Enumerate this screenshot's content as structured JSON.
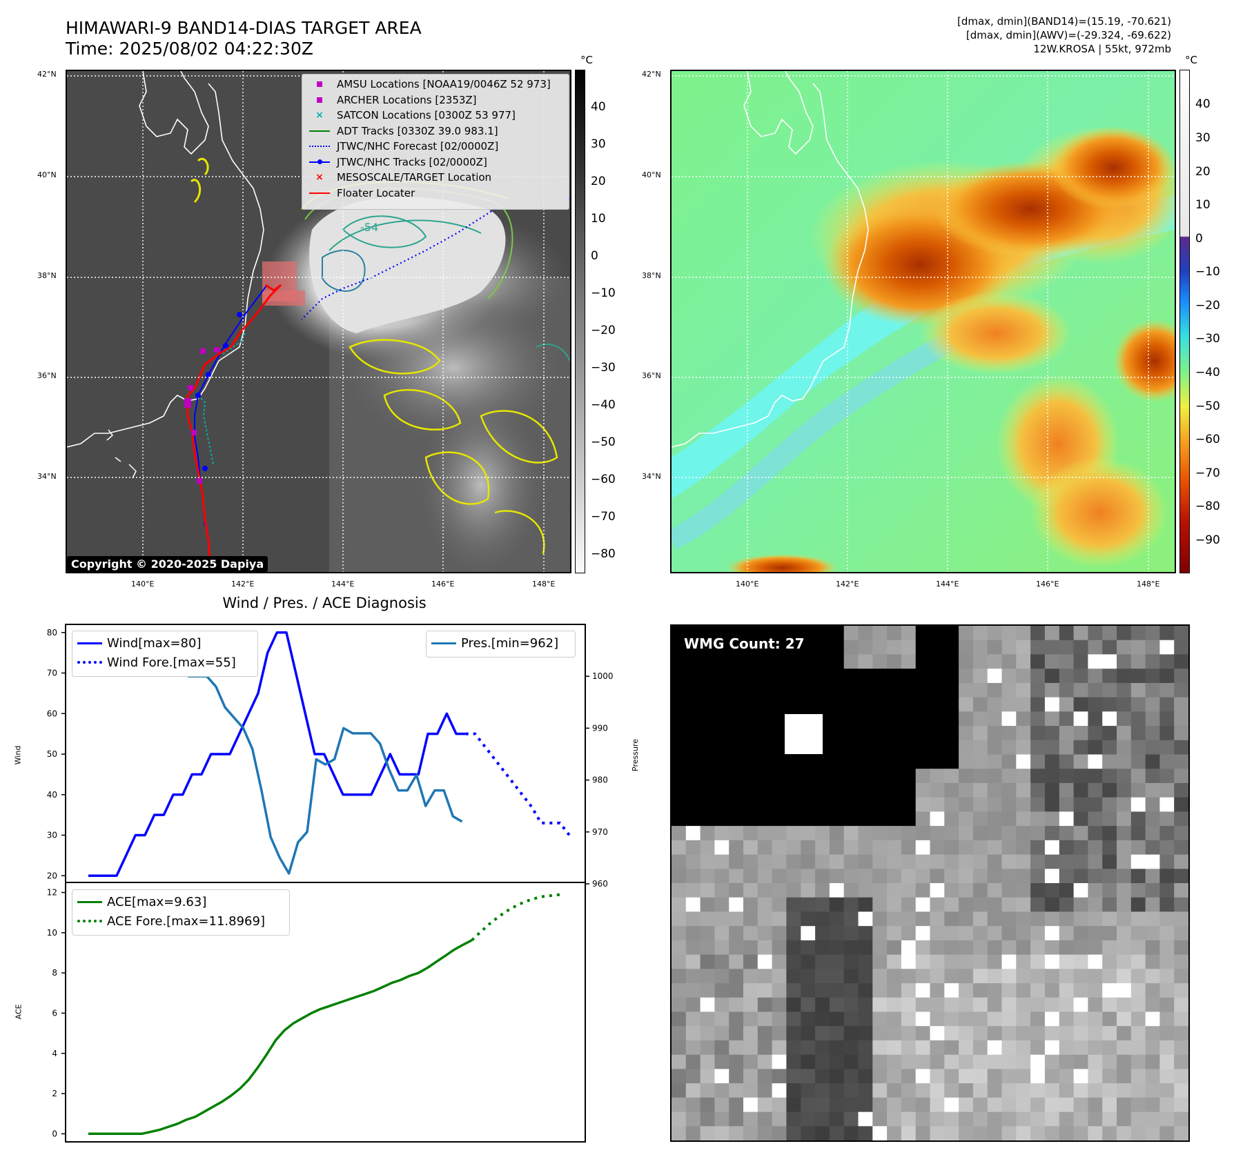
{
  "header": {
    "title_line1": "HIMAWARI-9 BAND14-DIAS TARGET AREA",
    "title_line2": "Time: 2025/08/02 04:22:30Z",
    "info_line1": "[dmax, dmin](BAND14)=(15.19, -70.621)",
    "info_line2": "[dmax, dmin](AWV)=(-29.324, -69.622)",
    "info_line3": "12W.KROSA | 55kt, 972mb"
  },
  "map": {
    "lat_labels": [
      "42°N",
      "40°N",
      "38°N",
      "36°N",
      "34°N"
    ],
    "lon_labels": [
      "140°E",
      "142°E",
      "144°E",
      "146°E",
      "148°E"
    ],
    "copyright": "Copyright © 2020-2025 Dapiya",
    "contour_label": "-54",
    "legend": [
      {
        "label": "AMSU Locations [NOAA19/0046Z 52 973]",
        "color": "#c000c0",
        "symbol": "square-marker"
      },
      {
        "label": "ARCHER Locations [2353Z]",
        "color": "#c000c0",
        "symbol": "square-marker"
      },
      {
        "label": "SATCON Locations [0300Z 53 977]",
        "color": "#00b0b0",
        "symbol": "x-marker"
      },
      {
        "label": "ADT Tracks [0330Z 39.0 983.1]",
        "color": "#008000",
        "symbol": "line"
      },
      {
        "label": "JTWC/NHC Forecast [02/0000Z]",
        "color": "#0000ff",
        "symbol": "dotted-line"
      },
      {
        "label": "JTWC/NHC Tracks [02/0000Z]",
        "color": "#0000ff",
        "symbol": "line-dot"
      },
      {
        "label": "MESOSCALE/TARGET Location",
        "color": "#ff0000",
        "symbol": "x-marker"
      },
      {
        "label": "Floater Locater",
        "color": "#ff0000",
        "symbol": "line"
      }
    ]
  },
  "colorbars": {
    "unit": "°C",
    "gray_ticks": [
      "40",
      "30",
      "20",
      "10",
      "0",
      "−10",
      "−20",
      "−30",
      "−40",
      "−50",
      "−60",
      "−70",
      "−80"
    ],
    "awv_ticks": [
      "40",
      "30",
      "20",
      "10",
      "0",
      "−10",
      "−20",
      "−30",
      "−40",
      "−50",
      "−60",
      "−70",
      "−80",
      "−90"
    ]
  },
  "wmg": {
    "label": "WMG Count: 27"
  },
  "chart_data": [
    {
      "type": "line",
      "title": "Wind / Pres. / ACE Diagnosis",
      "ylabel": "Wind",
      "y2label": "Pressure",
      "ylim": [
        18,
        82
      ],
      "y2lim": [
        960,
        1010
      ],
      "yticks": [
        "80",
        "70",
        "60",
        "50",
        "40",
        "30",
        "20"
      ],
      "y2ticks": [
        "1000",
        "990",
        "980",
        "970",
        "960"
      ],
      "series": [
        {
          "name": "Wind[max=80]",
          "color": "#0000ff",
          "style": "solid",
          "values": [
            20,
            20,
            20,
            20,
            25,
            30,
            30,
            35,
            35,
            40,
            40,
            45,
            45,
            50,
            50,
            50,
            55,
            60,
            65,
            75,
            80,
            80,
            70,
            60,
            50,
            50,
            45,
            40,
            40,
            40,
            40,
            45,
            50,
            45,
            45,
            45,
            55,
            55,
            60,
            55,
            55
          ]
        },
        {
          "name": "Wind Fore.[max=55]",
          "color": "#0000ff",
          "style": "dotted",
          "values": [
            55,
            55,
            52,
            49,
            46,
            43,
            40,
            37,
            33,
            33,
            33,
            30
          ]
        },
        {
          "name": "Pres.[min=962]",
          "color": "#1f77b4",
          "style": "solid",
          "axis": "right",
          "values": [
            1007,
            1007,
            1007,
            1006,
            1005,
            1005,
            1004,
            1003,
            1002,
            1002,
            1001,
            1000,
            1000,
            1000,
            998,
            994,
            992,
            990,
            986,
            978,
            969,
            965,
            962,
            968,
            970,
            984,
            983,
            984,
            990,
            989,
            989,
            989,
            987,
            982,
            978,
            978,
            981,
            975,
            978,
            978,
            973,
            972
          ]
        }
      ]
    },
    {
      "type": "line",
      "ylabel": "ACE",
      "ylim": [
        -0.4,
        12.5
      ],
      "yticks": [
        "12",
        "10",
        "8",
        "6",
        "4",
        "2",
        "0"
      ],
      "series": [
        {
          "name": "ACE[max=9.63]",
          "color": "#008000",
          "style": "solid",
          "values": [
            0,
            0,
            0,
            0,
            0,
            0,
            0,
            0.1,
            0.2,
            0.35,
            0.5,
            0.7,
            0.85,
            1.1,
            1.35,
            1.6,
            1.9,
            2.25,
            2.7,
            3.3,
            3.95,
            4.65,
            5.15,
            5.5,
            5.75,
            6.0,
            6.2,
            6.35,
            6.5,
            6.65,
            6.8,
            6.95,
            7.1,
            7.3,
            7.5,
            7.65,
            7.85,
            8.0,
            8.25,
            8.55,
            8.85,
            9.15,
            9.4,
            9.63
          ]
        },
        {
          "name": "ACE Fore.[max=11.8969]",
          "color": "#008000",
          "style": "dotted",
          "values": [
            9.63,
            10.05,
            10.45,
            10.8,
            11.1,
            11.35,
            11.55,
            11.7,
            11.8,
            11.85,
            11.9
          ]
        }
      ]
    }
  ]
}
